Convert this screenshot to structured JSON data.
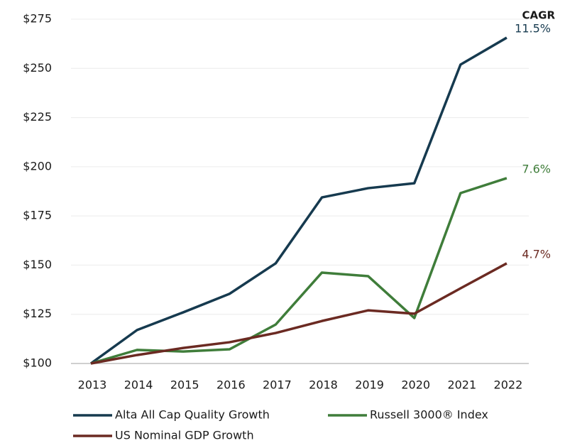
{
  "chart_data": {
    "type": "line",
    "categories": [
      "2013",
      "2014",
      "2015",
      "2016",
      "2017",
      "2018",
      "2019",
      "2020",
      "2021",
      "2022"
    ],
    "series": [
      {
        "name": "Alta All Cap Quality Growth",
        "color": "#163a4f",
        "cagr": "11.5%",
        "values": [
          100,
          117,
          126,
          135.4,
          150.9,
          184.4,
          189.1,
          191.6,
          251.9,
          265.6
        ]
      },
      {
        "name": "Russell 3000® Index",
        "color": "#3f7d3a",
        "cagr": "7.6%",
        "values": [
          100,
          106.9,
          106.1,
          107.2,
          119.8,
          146.2,
          144.4,
          123.1,
          186.6,
          194.2
        ]
      },
      {
        "name": "US Nominal GDP Growth",
        "color": "#6b2a22",
        "cagr": "4.7%",
        "values": [
          100,
          104.3,
          107.9,
          110.8,
          115.5,
          121.6,
          127,
          125.3,
          138.2,
          150.9
        ]
      }
    ],
    "cagr_title": "CAGR",
    "ylim": [
      100,
      275
    ],
    "yticks": [
      {
        "value": 100,
        "label": "$100"
      },
      {
        "value": 125,
        "label": "$125"
      },
      {
        "value": 150,
        "label": "$150"
      },
      {
        "value": 175,
        "label": "$175"
      },
      {
        "value": 200,
        "label": "$200"
      },
      {
        "value": 225,
        "label": "$225"
      },
      {
        "value": 250,
        "label": "$250"
      },
      {
        "value": 275,
        "label": "$275"
      }
    ],
    "grid": true,
    "legend": "bottom"
  }
}
